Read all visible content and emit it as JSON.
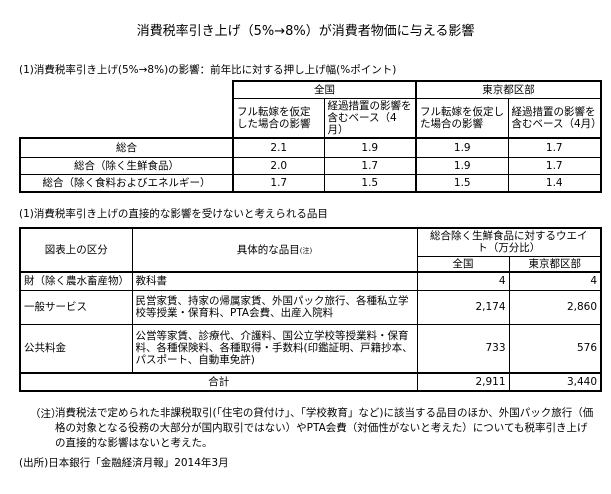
{
  "title": "消費税率引き上げ（5%→8%）が消費者物価に与える影響",
  "section1": {
    "heading": "(1)消費税率引き上げ(5%→8%)の影響：前年比に対する押し上げ幅(%ポイント)",
    "groups": [
      "全国",
      "東京都区部"
    ],
    "subheaders": [
      "フル転嫁を仮定した場合の影響",
      "経過措置の影響を含むベース（4月）",
      "フル転嫁を仮定した場合の影響",
      "経過措置の影響を含むベース（4月）"
    ],
    "rows": [
      {
        "label": "総合",
        "values": [
          "2.1",
          "1.9",
          "1.9",
          "1.7"
        ]
      },
      {
        "label": "総合（除く生鮮食品）",
        "values": [
          "2.0",
          "1.7",
          "1.9",
          "1.7"
        ]
      },
      {
        "label": "総合（除く食料およびエネルギー）",
        "values": [
          "1.7",
          "1.5",
          "1.5",
          "1.4"
        ]
      }
    ]
  },
  "section2": {
    "heading": "(1)消費税率引き上げの直接的な影響を受けないと考えられる品目",
    "col_category": "図表上の区分",
    "col_items": "具体的な品目",
    "col_items_note": "(注)",
    "col_weight": "総合除く生鮮食品に対するウエイト（万分比）",
    "sub_cols": [
      "全国",
      "東京都区部"
    ],
    "rows": [
      {
        "category": "財（除く農水畜産物）",
        "items": "教科書",
        "values": [
          "4",
          "4"
        ]
      },
      {
        "category": "一般サービス",
        "items": "民営家賃、持家の帰属家賃、外国パック旅行、各種私立学校等授業・保育料、PTA会費、出産入院料",
        "values": [
          "2,174",
          "2,860"
        ]
      },
      {
        "category": "公共料金",
        "items": "公営等家賃、診療代、介護料、国公立学校等授業料・保育料、各種保険料、各種取得・手数料(印鑑証明、戸籍抄本、パスポート、自動車免許)",
        "values": [
          "733",
          "576"
        ]
      }
    ],
    "total_label": "合計",
    "total_values": [
      "2,911",
      "3,440"
    ]
  },
  "note": {
    "mark": "（注）",
    "text": "消費税法で定められた非課税取引(「住宅の貸付け」、「学校教育」など)に該当する品目のほか、外国パック旅行（価格の対象となる役務の大部分が国内取引ではない）やPTA会費（対価性がないと考えた）についても税率引き上げの直接的な影響はないと考えた。"
  },
  "source": "(出所)日本銀行「金融経済月報」2014年3月"
}
